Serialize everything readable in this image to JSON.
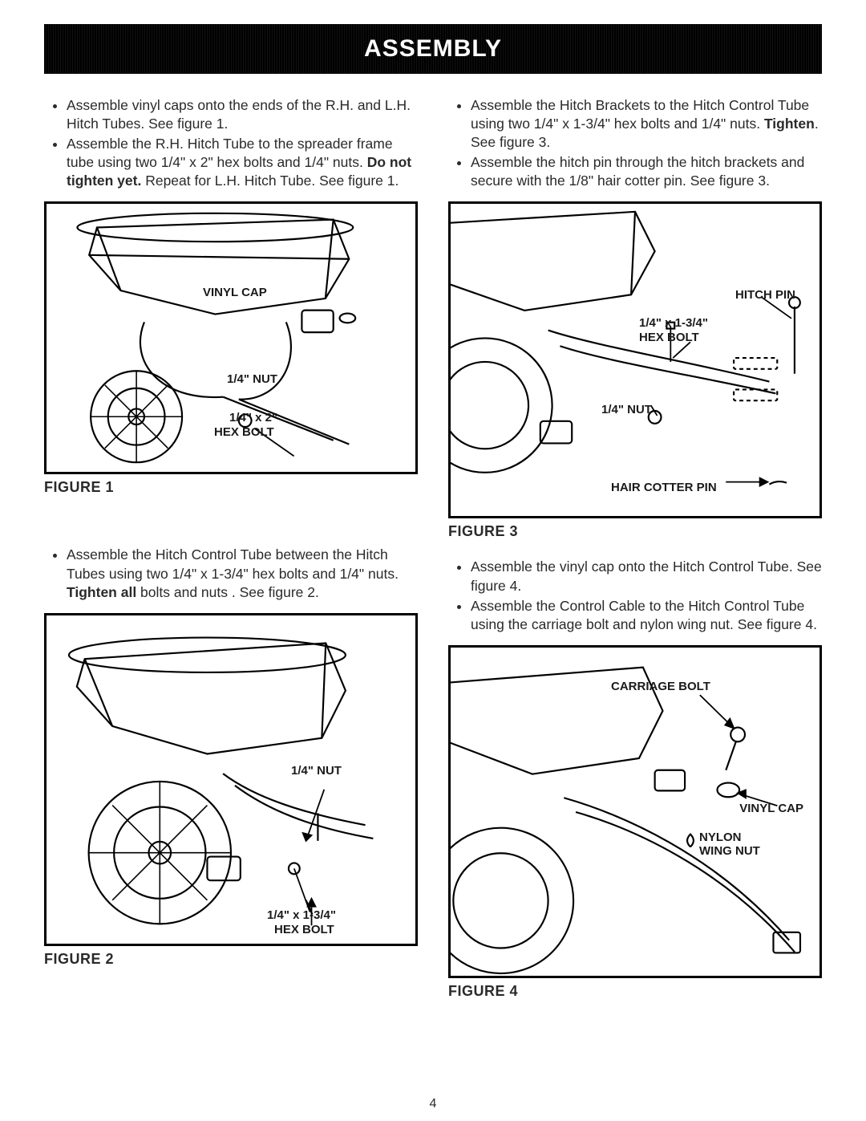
{
  "header": "ASSEMBLY",
  "page_number": "4",
  "left": {
    "bullets_top": [
      "Assemble vinyl caps onto the ends of the R.H. and L.H. Hitch Tubes. See figure 1.",
      "Assemble the R.H. Hitch Tube to the spreader frame tube using two 1/4\" x 2\" hex bolts and 1/4\" nuts. <b>Do not tighten yet.</b> Repeat for L.H. Hitch Tube. See figure 1."
    ],
    "figure1": {
      "caption": "FIGURE 1",
      "callouts": {
        "vinyl_cap": "VINYL CAP",
        "nut": "1/4\" NUT",
        "bolt_size": "1/4\" x 2\"",
        "bolt": "HEX BOLT"
      }
    },
    "bullets_mid": [
      "Assemble the Hitch Control Tube between the Hitch Tubes using two 1/4\" x 1-3/4\" hex bolts and 1/4\" nuts. <b>Tighten all</b> bolts and nuts . See figure 2."
    ],
    "figure2": {
      "caption": "FIGURE 2",
      "callouts": {
        "nut": "1/4\" NUT",
        "bolt_size": "1/4\" x 1-3/4\"",
        "bolt": "HEX BOLT"
      }
    }
  },
  "right": {
    "bullets_top": [
      "Assemble the Hitch Brackets to the Hitch Control Tube using two 1/4\" x 1-3/4\" hex bolts and 1/4\" nuts. <b>Tighten</b>. See figure 3.",
      "Assemble the hitch pin through the hitch brackets and secure with the 1/8\" hair cotter pin. See figure 3."
    ],
    "figure3": {
      "caption": "FIGURE 3",
      "callouts": {
        "hitch_pin": "HITCH PIN",
        "bolt_size": "1/4\" x 1-3/4\"",
        "bolt": "HEX BOLT",
        "nut": "1/4\" NUT",
        "cotter": "HAIR COTTER PIN"
      }
    },
    "bullets_mid": [
      "Assemble the vinyl cap onto the Hitch Control Tube. See figure 4.",
      "Assemble the Control Cable to the Hitch Control Tube using the carriage bolt and nylon wing nut. See figure 4."
    ],
    "figure4": {
      "caption": "FIGURE 4",
      "callouts": {
        "carriage": "CARRIAGE BOLT",
        "vinyl_cap": "VINYL CAP",
        "wing_nut_a": "NYLON",
        "wing_nut_b": "WING NUT"
      }
    }
  }
}
